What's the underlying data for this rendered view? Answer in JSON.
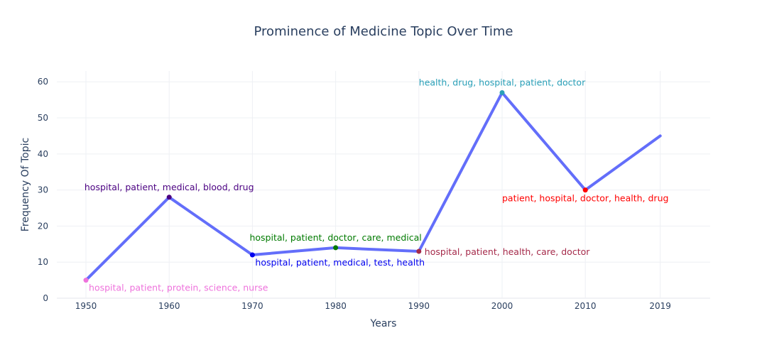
{
  "chart_data": {
    "type": "line",
    "title": "Prominence of Medicine Topic Over Time",
    "xlabel": "Years",
    "ylabel": "Frequency Of Topic",
    "x_ticks": [
      "1950",
      "1960",
      "1970",
      "1980",
      "1990",
      "2000",
      "2010",
      "2019"
    ],
    "y_ticks": [
      "0",
      "10",
      "20",
      "30",
      "40",
      "50",
      "60"
    ],
    "xlim": [
      1946.5,
      2025
    ],
    "ylim": [
      0,
      63
    ],
    "grid": true,
    "line_color": "#636efa",
    "x": [
      1950,
      1960,
      1970,
      1980,
      1990,
      2000,
      2010,
      2019
    ],
    "y": [
      5,
      28,
      12,
      14,
      13,
      57,
      30,
      45
    ],
    "points": [
      {
        "x": 1950,
        "y": 5,
        "label": "hospital, patient, protein, science, nurse",
        "color": "#ee72dc",
        "label_pos": "bottom-right"
      },
      {
        "x": 1960,
        "y": 28,
        "label": "hospital, patient, medical, blood, drug",
        "color": "#4b0082",
        "label_pos": "top"
      },
      {
        "x": 1970,
        "y": 12,
        "label": "hospital, patient, medical, test, health",
        "color": "#0000ee",
        "label_pos": "bottom-right"
      },
      {
        "x": 1980,
        "y": 14,
        "label": "hospital, patient, doctor, care, medical",
        "color": "#007a00",
        "label_pos": "top"
      },
      {
        "x": 1990,
        "y": 13,
        "label": "hospital, patient, health, care, doctor",
        "color": "#a52a4a",
        "label_pos": "right"
      },
      {
        "x": 2000,
        "y": 57,
        "label": "health, drug, hospital, patient, doctor",
        "color": "#2aa0b8",
        "label_pos": "top"
      },
      {
        "x": 2010,
        "y": 30,
        "label": "patient, hospital, doctor, health, drug",
        "color": "#ff0000",
        "label_pos": "bottom"
      }
    ]
  }
}
